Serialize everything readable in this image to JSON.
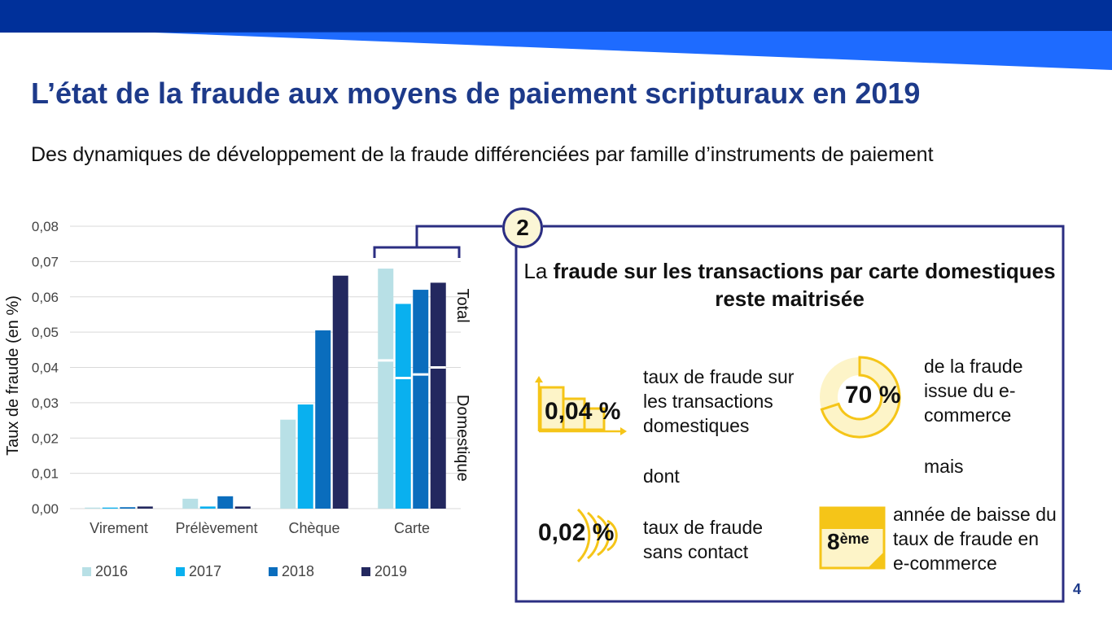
{
  "slide": {
    "title": "L’état de la fraude aux moyens de paiement scripturaux en 2019",
    "subtitle": "Des dynamiques de développement de la fraude différenciées par famille d’instruments de paiement",
    "page_number": "4",
    "colors": {
      "title": "#1d3a8a",
      "band_dark": "#00309a",
      "band_light": "#1e6bff",
      "panel_border": "#2b2e82",
      "accent_yellow": "#f5c518"
    }
  },
  "chart_data": {
    "type": "bar",
    "ylabel": "Taux de fraude (en %)",
    "xlabel": "",
    "ylim": [
      0,
      0.08
    ],
    "yticks": [
      "0,00",
      "0,01",
      "0,02",
      "0,03",
      "0,04",
      "0,05",
      "0,06",
      "0,07",
      "0,08"
    ],
    "categories": [
      "Virement",
      "Prélèvement",
      "Chèque",
      "Carte"
    ],
    "series": [
      {
        "name": "2016",
        "color": "#b8e0e6",
        "values": [
          0.0003,
          0.0028,
          0.0252,
          0.068
        ],
        "domestic": [
          null,
          null,
          null,
          0.042
        ]
      },
      {
        "name": "2017",
        "color": "#09b0ef",
        "values": [
          0.0003,
          0.0006,
          0.0295,
          0.058
        ],
        "domestic": [
          null,
          null,
          null,
          0.037
        ]
      },
      {
        "name": "2018",
        "color": "#0a6dbd",
        "values": [
          0.0004,
          0.0035,
          0.0505,
          0.062
        ],
        "domestic": [
          null,
          null,
          null,
          0.038
        ]
      },
      {
        "name": "2019",
        "color": "#23285f",
        "values": [
          0.0006,
          0.0006,
          0.066,
          0.064
        ],
        "domestic": [
          null,
          null,
          null,
          0.04
        ]
      }
    ],
    "bracket_labels": {
      "total": "Total",
      "domestic": "Domestique"
    },
    "grid": true,
    "legend_position": "bottom"
  },
  "panel": {
    "badge": "2",
    "heading_normal": "La ",
    "heading_bold": "fraude sur les transactions par carte domestiques reste maitrisée",
    "stats": {
      "domestic_rate": {
        "value": "0,04 %",
        "text": "taux de fraude sur les transactions domestiques"
      },
      "dont": "dont",
      "contactless_rate": {
        "value": "0,02 %",
        "text": "taux de fraude sans contact"
      },
      "ecommerce_share": {
        "value": "70 %",
        "text": "de la fraude issue du e-commerce"
      },
      "mais": "mais",
      "decline_year": {
        "value": "8",
        "suffix": "ème",
        "text": "année de baisse du taux de fraude en e-commerce"
      }
    }
  }
}
